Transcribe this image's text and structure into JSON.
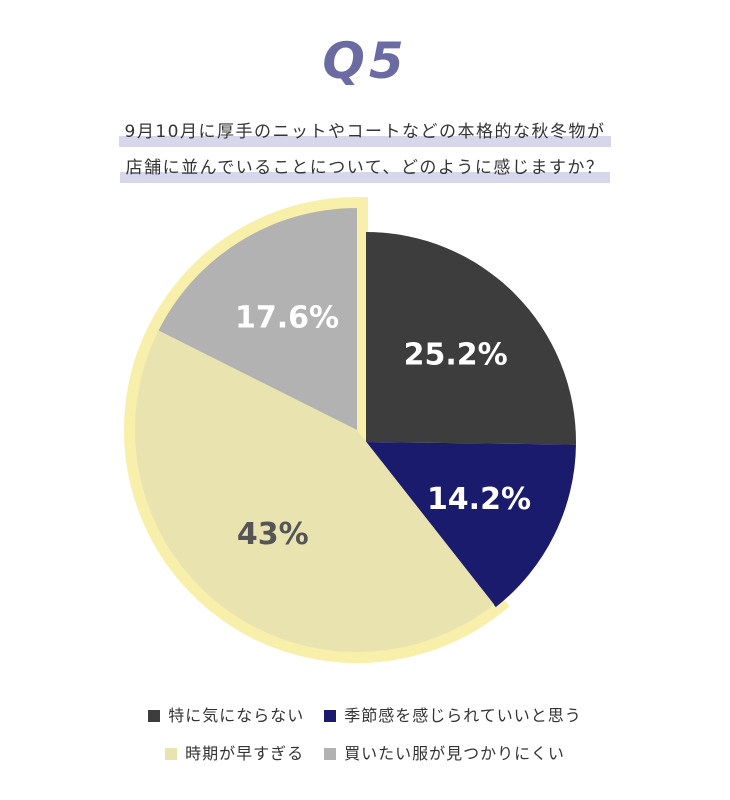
{
  "heading": "Q5",
  "question": {
    "line1": "9月10月に厚手のニットやコートなどの本格的な秋冬物が",
    "line2": "店舗に並んでいることについて、どのように感じますか？"
  },
  "colors": {
    "heading": "#6b6aa3",
    "highlight": "#d8d6ea",
    "slice_dark": "#3d3d3d",
    "slice_navy": "#1b1b6e",
    "slice_cream": "#e9e3b0",
    "slice_gray": "#b2b2b2",
    "emphasis_border": "#f7efaa"
  },
  "chart_data": {
    "type": "pie",
    "slices": [
      {
        "label": "特に気にならない",
        "value": 25.2,
        "display": "25.2%",
        "color": "#3d3d3d",
        "label_color": "#ffffff"
      },
      {
        "label": "季節感を感じられていいと思う",
        "value": 14.2,
        "display": "14.2%",
        "color": "#1b1b6e",
        "label_color": "#ffffff"
      },
      {
        "label": "時期が早すぎる",
        "value": 43,
        "display": "43%",
        "color": "#e9e3b0",
        "label_color": "#555555",
        "emphasized": true
      },
      {
        "label": "買いたい服が見つかりにくい",
        "value": 17.6,
        "display": "17.6%",
        "color": "#b2b2b2",
        "label_color": "#ffffff",
        "emphasized": true
      }
    ],
    "start": "top, clockwise",
    "legend_position": "bottom"
  }
}
